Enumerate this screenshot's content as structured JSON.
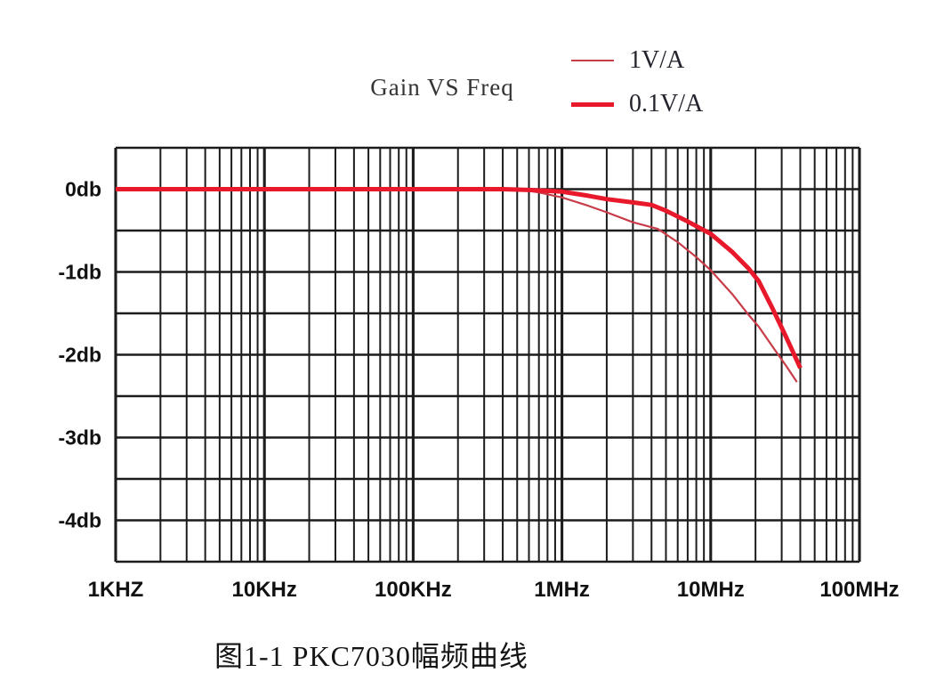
{
  "figure": {
    "background": "#ffffff",
    "caption": "图1-1 PKC7030幅频曲线"
  },
  "chart_data": {
    "type": "line",
    "title": "Gain VS Freq",
    "x_scale": "log",
    "x_unit": "Hz",
    "x_range_hz": [
      1000,
      100000000
    ],
    "y_unit": "db",
    "y_range_db": [
      -4.5,
      0.5
    ],
    "grid": {
      "shown": true,
      "y_step_db": 0.5,
      "x_minor": "log sub-decades 2-9",
      "color": "#1c1c1c"
    },
    "legend_position": "top-right",
    "x_ticks": [
      {
        "value": 1000,
        "label": "1KHZ"
      },
      {
        "value": 10000,
        "label": "10KHz"
      },
      {
        "value": 100000,
        "label": "100KHz"
      },
      {
        "value": 1000000,
        "label": "1MHz"
      },
      {
        "value": 10000000,
        "label": "10MHz"
      },
      {
        "value": 100000000,
        "label": "100MHz"
      }
    ],
    "y_ticks": [
      {
        "value": 0,
        "label": "0db"
      },
      {
        "value": -1,
        "label": "-1db"
      },
      {
        "value": -2,
        "label": "-2db"
      },
      {
        "value": -3,
        "label": "-3db"
      },
      {
        "value": -4,
        "label": "-4db"
      }
    ],
    "series": [
      {
        "name": "1V/A",
        "color": "#c83d49",
        "width": 2.2,
        "points_hz_db": [
          [
            1000,
            0
          ],
          [
            10000,
            0
          ],
          [
            100000,
            0
          ],
          [
            400000,
            0
          ],
          [
            550000,
            -0.01
          ],
          [
            700000,
            -0.04
          ],
          [
            1000000,
            -0.1
          ],
          [
            1500000,
            -0.2
          ],
          [
            2000000,
            -0.28
          ],
          [
            3000000,
            -0.4
          ],
          [
            4400000,
            -0.48
          ],
          [
            6000000,
            -0.64
          ],
          [
            8000000,
            -0.82
          ],
          [
            10000000,
            -0.98
          ],
          [
            14000000,
            -1.27
          ],
          [
            18000000,
            -1.52
          ],
          [
            21000000,
            -1.66
          ],
          [
            26000000,
            -1.9
          ],
          [
            32000000,
            -2.13
          ],
          [
            38000000,
            -2.33
          ]
        ]
      },
      {
        "name": "0.1V/A",
        "color": "#e8192b",
        "width": 5,
        "points_hz_db": [
          [
            1000,
            0
          ],
          [
            10000,
            0
          ],
          [
            100000,
            0
          ],
          [
            400000,
            0
          ],
          [
            600000,
            -0.01
          ],
          [
            1000000,
            -0.03
          ],
          [
            1500000,
            -0.08
          ],
          [
            2000000,
            -0.12
          ],
          [
            3000000,
            -0.16
          ],
          [
            4000000,
            -0.19
          ],
          [
            5000000,
            -0.26
          ],
          [
            7000000,
            -0.39
          ],
          [
            10000000,
            -0.54
          ],
          [
            14000000,
            -0.76
          ],
          [
            18000000,
            -0.96
          ],
          [
            21000000,
            -1.11
          ],
          [
            26000000,
            -1.44
          ],
          [
            32000000,
            -1.78
          ],
          [
            40000000,
            -2.16
          ]
        ]
      }
    ]
  }
}
